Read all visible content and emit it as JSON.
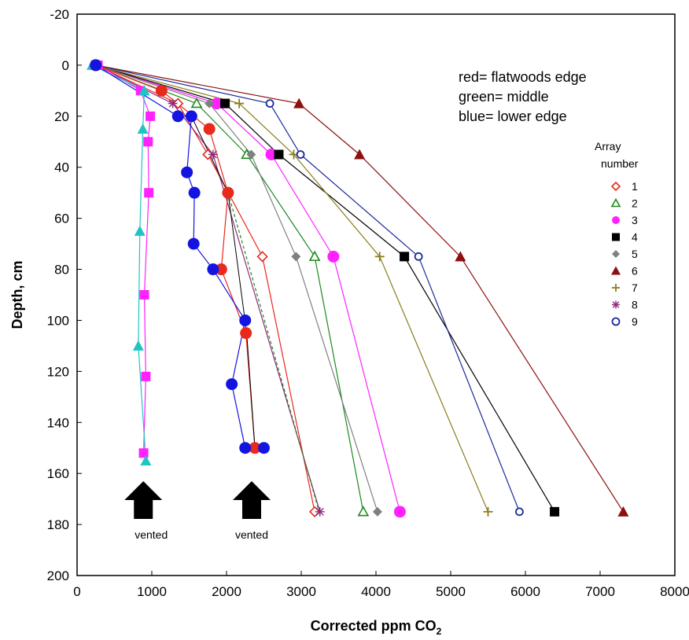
{
  "chart_data": {
    "type": "line",
    "title": "",
    "xlabel": "Corrected ppm CO",
    "xlabel_sub": "2",
    "ylabel": "Depth, cm",
    "xlim": [
      0,
      8000
    ],
    "ylim": [
      -20,
      200
    ],
    "y_inverted": true,
    "x_ticks": [
      0,
      1000,
      2000,
      3000,
      4000,
      5000,
      6000,
      7000,
      8000
    ],
    "y_ticks": [
      -20,
      0,
      20,
      40,
      60,
      80,
      100,
      120,
      140,
      160,
      180,
      200
    ],
    "grid": false,
    "legend_title_line1": "Array",
    "legend_title_line2": "number",
    "legend_position": "right",
    "annotation_lines": [
      "red= flatwoods edge",
      "green= middle",
      "blue= lower edge"
    ],
    "vent_label": "vented",
    "vent_markers_x": [
      950,
      2400
    ],
    "series": [
      {
        "name": "1",
        "color": "#e8291c",
        "marker": "diamond-open",
        "dash": false,
        "x": [
          250,
          1350,
          1750,
          2480,
          3180
        ],
        "y": [
          0,
          15,
          35,
          75,
          175
        ]
      },
      {
        "name": "2",
        "color": "#1b8a1b",
        "marker": "triangle-open",
        "dash": false,
        "x": [
          250,
          1600,
          2270,
          3180,
          3830
        ],
        "y": [
          0,
          15,
          35,
          75,
          175
        ]
      },
      {
        "name": "3",
        "color": "#ff22ff",
        "marker": "circle-filled",
        "dash": false,
        "x": [
          250,
          1870,
          2600,
          3430,
          4320
        ],
        "y": [
          0,
          15,
          35,
          75,
          175
        ]
      },
      {
        "name": "4",
        "color": "#000000",
        "marker": "square-filled",
        "dash": false,
        "x": [
          250,
          1980,
          2700,
          4380,
          6390
        ],
        "y": [
          0,
          15,
          35,
          75,
          175
        ]
      },
      {
        "name": "5",
        "color": "#808080",
        "marker": "diamond-filled",
        "dash": false,
        "x": [
          250,
          1770,
          2330,
          2930,
          4020
        ],
        "y": [
          0,
          15,
          35,
          75,
          175
        ]
      },
      {
        "name": "6",
        "color": "#8b1010",
        "marker": "triangle-filled",
        "dash": false,
        "x": [
          250,
          2970,
          3780,
          5130,
          7310
        ],
        "y": [
          0,
          15,
          35,
          75,
          175
        ]
      },
      {
        "name": "7",
        "color": "#8b7d1e",
        "marker": "plus",
        "dash": false,
        "x": [
          250,
          2170,
          2900,
          4050,
          5500
        ],
        "y": [
          0,
          15,
          35,
          75,
          175
        ]
      },
      {
        "name": "8",
        "color": "#8e2a7a",
        "marker": "star",
        "dash": false,
        "x": [
          250,
          1280,
          1820,
          3250
        ],
        "y": [
          0,
          15,
          35,
          175
        ]
      },
      {
        "name": "9",
        "color": "#1a2a9a",
        "marker": "circle-open",
        "dash": false,
        "x": [
          250,
          2580,
          2990,
          4570,
          5920
        ],
        "y": [
          0,
          15,
          35,
          75,
          175
        ]
      },
      {
        "name": "",
        "color": "#1b8a1b",
        "marker": "none",
        "dash": true,
        "x": [
          2020,
          3240
        ],
        "y": [
          50,
          175
        ]
      },
      {
        "name": "",
        "color": "#ff22ff",
        "marker": "square-filled",
        "dash": false,
        "x": [
          280,
          850,
          980,
          950,
          960,
          900,
          920,
          890
        ],
        "y": [
          0,
          10,
          20,
          30,
          50,
          90,
          122,
          152
        ]
      },
      {
        "name": "",
        "color": "#20c4c4",
        "marker": "triangle-filled",
        "dash": false,
        "x": [
          200,
          900,
          880,
          840,
          820,
          920
        ],
        "y": [
          0,
          10,
          25,
          65,
          110,
          155
        ]
      },
      {
        "name": "",
        "color": "#e8291c",
        "marker": "circle-filled",
        "dash": false,
        "x": [
          250,
          1130,
          1770,
          2020,
          1930,
          2260,
          2380
        ],
        "y": [
          0,
          10,
          25,
          50,
          80,
          105,
          150
        ]
      },
      {
        "name": "",
        "color": "#1414e0",
        "marker": "circle-filled",
        "dash": false,
        "x": [
          250,
          1350,
          1530,
          1470,
          1570,
          1560,
          1820,
          2250,
          2070,
          2250,
          2500
        ],
        "y": [
          0,
          20,
          20,
          42,
          50,
          70,
          80,
          100,
          125,
          150,
          150
        ]
      }
    ],
    "connector_line": {
      "color": "#000000",
      "x": [
        1530,
        2020,
        2270,
        2380
      ],
      "y": [
        20,
        50,
        105,
        150
      ]
    }
  }
}
